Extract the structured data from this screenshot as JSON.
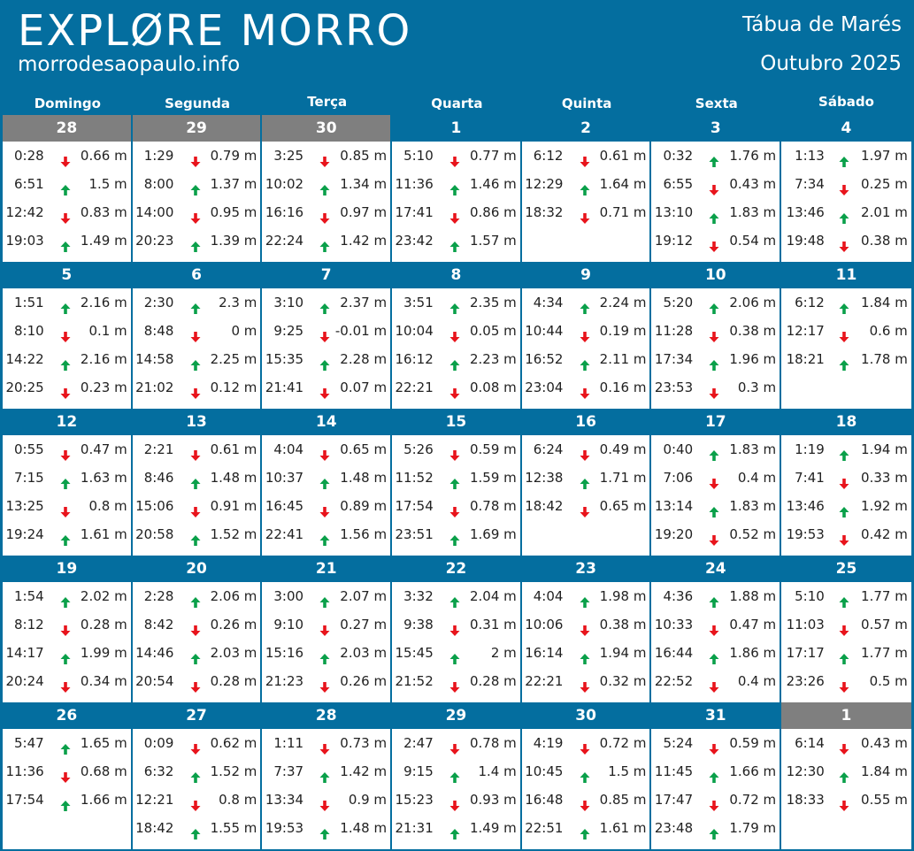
{
  "header": {
    "brand_title": "EXPLØRE MORRO",
    "brand_url": "morrodesaopaulo.info",
    "doc_title": "Tábua de Marés",
    "doc_month": "Outubro 2025"
  },
  "colors": {
    "brand_blue": "#046e9f",
    "other_month_gray": "#7f7f7f",
    "rising_green": "#0aa04a",
    "falling_red": "#e8141c"
  },
  "icons": {
    "rising": "arrow-up-icon",
    "falling": "arrow-down-icon"
  },
  "weekdays": [
    "Domingo",
    "Segunda",
    "Terça",
    "Quarta",
    "Quinta",
    "Sexta",
    "Sábado"
  ],
  "weeks": [
    [
      {
        "day": "28",
        "other_month": true,
        "tides": [
          {
            "time": "0:28",
            "dir": "down",
            "height": "0.66 m"
          },
          {
            "time": "6:51",
            "dir": "up",
            "height": "1.5 m"
          },
          {
            "time": "12:42",
            "dir": "down",
            "height": "0.83 m"
          },
          {
            "time": "19:03",
            "dir": "up",
            "height": "1.49 m"
          }
        ]
      },
      {
        "day": "29",
        "other_month": true,
        "tides": [
          {
            "time": "1:29",
            "dir": "down",
            "height": "0.79 m"
          },
          {
            "time": "8:00",
            "dir": "up",
            "height": "1.37 m"
          },
          {
            "time": "14:00",
            "dir": "down",
            "height": "0.95 m"
          },
          {
            "time": "20:23",
            "dir": "up",
            "height": "1.39 m"
          }
        ]
      },
      {
        "day": "30",
        "other_month": true,
        "tides": [
          {
            "time": "3:25",
            "dir": "down",
            "height": "0.85 m"
          },
          {
            "time": "10:02",
            "dir": "up",
            "height": "1.34 m"
          },
          {
            "time": "16:16",
            "dir": "down",
            "height": "0.97 m"
          },
          {
            "time": "22:24",
            "dir": "up",
            "height": "1.42 m"
          }
        ]
      },
      {
        "day": "1",
        "other_month": false,
        "tides": [
          {
            "time": "5:10",
            "dir": "down",
            "height": "0.77 m"
          },
          {
            "time": "11:36",
            "dir": "up",
            "height": "1.46 m"
          },
          {
            "time": "17:41",
            "dir": "down",
            "height": "0.86 m"
          },
          {
            "time": "23:42",
            "dir": "up",
            "height": "1.57 m"
          }
        ]
      },
      {
        "day": "2",
        "other_month": false,
        "tides": [
          {
            "time": "6:12",
            "dir": "down",
            "height": "0.61 m"
          },
          {
            "time": "12:29",
            "dir": "up",
            "height": "1.64 m"
          },
          {
            "time": "18:32",
            "dir": "down",
            "height": "0.71 m"
          }
        ]
      },
      {
        "day": "3",
        "other_month": false,
        "tides": [
          {
            "time": "0:32",
            "dir": "up",
            "height": "1.76 m"
          },
          {
            "time": "6:55",
            "dir": "down",
            "height": "0.43 m"
          },
          {
            "time": "13:10",
            "dir": "up",
            "height": "1.83 m"
          },
          {
            "time": "19:12",
            "dir": "down",
            "height": "0.54 m"
          }
        ]
      },
      {
        "day": "4",
        "other_month": false,
        "tides": [
          {
            "time": "1:13",
            "dir": "up",
            "height": "1.97 m"
          },
          {
            "time": "7:34",
            "dir": "down",
            "height": "0.25 m"
          },
          {
            "time": "13:46",
            "dir": "up",
            "height": "2.01 m"
          },
          {
            "time": "19:48",
            "dir": "down",
            "height": "0.38 m"
          }
        ]
      }
    ],
    [
      {
        "day": "5",
        "other_month": false,
        "tides": [
          {
            "time": "1:51",
            "dir": "up",
            "height": "2.16 m"
          },
          {
            "time": "8:10",
            "dir": "down",
            "height": "0.1 m"
          },
          {
            "time": "14:22",
            "dir": "up",
            "height": "2.16 m"
          },
          {
            "time": "20:25",
            "dir": "down",
            "height": "0.23 m"
          }
        ]
      },
      {
        "day": "6",
        "other_month": false,
        "tides": [
          {
            "time": "2:30",
            "dir": "up",
            "height": "2.3 m"
          },
          {
            "time": "8:48",
            "dir": "down",
            "height": "0 m"
          },
          {
            "time": "14:58",
            "dir": "up",
            "height": "2.25 m"
          },
          {
            "time": "21:02",
            "dir": "down",
            "height": "0.12 m"
          }
        ]
      },
      {
        "day": "7",
        "other_month": false,
        "tides": [
          {
            "time": "3:10",
            "dir": "up",
            "height": "2.37 m"
          },
          {
            "time": "9:25",
            "dir": "down",
            "height": "-0.01 m"
          },
          {
            "time": "15:35",
            "dir": "up",
            "height": "2.28 m"
          },
          {
            "time": "21:41",
            "dir": "down",
            "height": "0.07 m"
          }
        ]
      },
      {
        "day": "8",
        "other_month": false,
        "tides": [
          {
            "time": "3:51",
            "dir": "up",
            "height": "2.35 m"
          },
          {
            "time": "10:04",
            "dir": "down",
            "height": "0.05 m"
          },
          {
            "time": "16:12",
            "dir": "up",
            "height": "2.23 m"
          },
          {
            "time": "22:21",
            "dir": "down",
            "height": "0.08 m"
          }
        ]
      },
      {
        "day": "9",
        "other_month": false,
        "tides": [
          {
            "time": "4:34",
            "dir": "up",
            "height": "2.24 m"
          },
          {
            "time": "10:44",
            "dir": "down",
            "height": "0.19 m"
          },
          {
            "time": "16:52",
            "dir": "up",
            "height": "2.11 m"
          },
          {
            "time": "23:04",
            "dir": "down",
            "height": "0.16 m"
          }
        ]
      },
      {
        "day": "10",
        "other_month": false,
        "tides": [
          {
            "time": "5:20",
            "dir": "up",
            "height": "2.06 m"
          },
          {
            "time": "11:28",
            "dir": "down",
            "height": "0.38 m"
          },
          {
            "time": "17:34",
            "dir": "up",
            "height": "1.96 m"
          },
          {
            "time": "23:53",
            "dir": "down",
            "height": "0.3 m"
          }
        ]
      },
      {
        "day": "11",
        "other_month": false,
        "tides": [
          {
            "time": "6:12",
            "dir": "up",
            "height": "1.84 m"
          },
          {
            "time": "12:17",
            "dir": "down",
            "height": "0.6 m"
          },
          {
            "time": "18:21",
            "dir": "up",
            "height": "1.78 m"
          }
        ]
      }
    ],
    [
      {
        "day": "12",
        "other_month": false,
        "tides": [
          {
            "time": "0:55",
            "dir": "down",
            "height": "0.47 m"
          },
          {
            "time": "7:15",
            "dir": "up",
            "height": "1.63 m"
          },
          {
            "time": "13:25",
            "dir": "down",
            "height": "0.8 m"
          },
          {
            "time": "19:24",
            "dir": "up",
            "height": "1.61 m"
          }
        ]
      },
      {
        "day": "13",
        "other_month": false,
        "tides": [
          {
            "time": "2:21",
            "dir": "down",
            "height": "0.61 m"
          },
          {
            "time": "8:46",
            "dir": "up",
            "height": "1.48 m"
          },
          {
            "time": "15:06",
            "dir": "down",
            "height": "0.91 m"
          },
          {
            "time": "20:58",
            "dir": "up",
            "height": "1.52 m"
          }
        ]
      },
      {
        "day": "14",
        "other_month": false,
        "tides": [
          {
            "time": "4:04",
            "dir": "down",
            "height": "0.65 m"
          },
          {
            "time": "10:37",
            "dir": "up",
            "height": "1.48 m"
          },
          {
            "time": "16:45",
            "dir": "down",
            "height": "0.89 m"
          },
          {
            "time": "22:41",
            "dir": "up",
            "height": "1.56 m"
          }
        ]
      },
      {
        "day": "15",
        "other_month": false,
        "tides": [
          {
            "time": "5:26",
            "dir": "down",
            "height": "0.59 m"
          },
          {
            "time": "11:52",
            "dir": "up",
            "height": "1.59 m"
          },
          {
            "time": "17:54",
            "dir": "down",
            "height": "0.78 m"
          },
          {
            "time": "23:51",
            "dir": "up",
            "height": "1.69 m"
          }
        ]
      },
      {
        "day": "16",
        "other_month": false,
        "tides": [
          {
            "time": "6:24",
            "dir": "down",
            "height": "0.49 m"
          },
          {
            "time": "12:38",
            "dir": "up",
            "height": "1.71 m"
          },
          {
            "time": "18:42",
            "dir": "down",
            "height": "0.65 m"
          }
        ]
      },
      {
        "day": "17",
        "other_month": false,
        "tides": [
          {
            "time": "0:40",
            "dir": "up",
            "height": "1.83 m"
          },
          {
            "time": "7:06",
            "dir": "down",
            "height": "0.4 m"
          },
          {
            "time": "13:14",
            "dir": "up",
            "height": "1.83 m"
          },
          {
            "time": "19:20",
            "dir": "down",
            "height": "0.52 m"
          }
        ]
      },
      {
        "day": "18",
        "other_month": false,
        "tides": [
          {
            "time": "1:19",
            "dir": "up",
            "height": "1.94 m"
          },
          {
            "time": "7:41",
            "dir": "down",
            "height": "0.33 m"
          },
          {
            "time": "13:46",
            "dir": "up",
            "height": "1.92 m"
          },
          {
            "time": "19:53",
            "dir": "down",
            "height": "0.42 m"
          }
        ]
      }
    ],
    [
      {
        "day": "19",
        "other_month": false,
        "tides": [
          {
            "time": "1:54",
            "dir": "up",
            "height": "2.02 m"
          },
          {
            "time": "8:12",
            "dir": "down",
            "height": "0.28 m"
          },
          {
            "time": "14:17",
            "dir": "up",
            "height": "1.99 m"
          },
          {
            "time": "20:24",
            "dir": "down",
            "height": "0.34 m"
          }
        ]
      },
      {
        "day": "20",
        "other_month": false,
        "tides": [
          {
            "time": "2:28",
            "dir": "up",
            "height": "2.06 m"
          },
          {
            "time": "8:42",
            "dir": "down",
            "height": "0.26 m"
          },
          {
            "time": "14:46",
            "dir": "up",
            "height": "2.03 m"
          },
          {
            "time": "20:54",
            "dir": "down",
            "height": "0.28 m"
          }
        ]
      },
      {
        "day": "21",
        "other_month": false,
        "tides": [
          {
            "time": "3:00",
            "dir": "up",
            "height": "2.07 m"
          },
          {
            "time": "9:10",
            "dir": "down",
            "height": "0.27 m"
          },
          {
            "time": "15:16",
            "dir": "up",
            "height": "2.03 m"
          },
          {
            "time": "21:23",
            "dir": "down",
            "height": "0.26 m"
          }
        ]
      },
      {
        "day": "22",
        "other_month": false,
        "tides": [
          {
            "time": "3:32",
            "dir": "up",
            "height": "2.04 m"
          },
          {
            "time": "9:38",
            "dir": "down",
            "height": "0.31 m"
          },
          {
            "time": "15:45",
            "dir": "up",
            "height": "2 m"
          },
          {
            "time": "21:52",
            "dir": "down",
            "height": "0.28 m"
          }
        ]
      },
      {
        "day": "23",
        "other_month": false,
        "tides": [
          {
            "time": "4:04",
            "dir": "up",
            "height": "1.98 m"
          },
          {
            "time": "10:06",
            "dir": "down",
            "height": "0.38 m"
          },
          {
            "time": "16:14",
            "dir": "up",
            "height": "1.94 m"
          },
          {
            "time": "22:21",
            "dir": "down",
            "height": "0.32 m"
          }
        ]
      },
      {
        "day": "24",
        "other_month": false,
        "tides": [
          {
            "time": "4:36",
            "dir": "up",
            "height": "1.88 m"
          },
          {
            "time": "10:33",
            "dir": "down",
            "height": "0.47 m"
          },
          {
            "time": "16:44",
            "dir": "up",
            "height": "1.86 m"
          },
          {
            "time": "22:52",
            "dir": "down",
            "height": "0.4 m"
          }
        ]
      },
      {
        "day": "25",
        "other_month": false,
        "tides": [
          {
            "time": "5:10",
            "dir": "up",
            "height": "1.77 m"
          },
          {
            "time": "11:03",
            "dir": "down",
            "height": "0.57 m"
          },
          {
            "time": "17:17",
            "dir": "up",
            "height": "1.77 m"
          },
          {
            "time": "23:26",
            "dir": "down",
            "height": "0.5 m"
          }
        ]
      }
    ],
    [
      {
        "day": "26",
        "other_month": false,
        "tides": [
          {
            "time": "5:47",
            "dir": "up",
            "height": "1.65 m"
          },
          {
            "time": "11:36",
            "dir": "down",
            "height": "0.68 m"
          },
          {
            "time": "17:54",
            "dir": "up",
            "height": "1.66 m"
          }
        ]
      },
      {
        "day": "27",
        "other_month": false,
        "tides": [
          {
            "time": "0:09",
            "dir": "down",
            "height": "0.62 m"
          },
          {
            "time": "6:32",
            "dir": "up",
            "height": "1.52 m"
          },
          {
            "time": "12:21",
            "dir": "down",
            "height": "0.8 m"
          },
          {
            "time": "18:42",
            "dir": "up",
            "height": "1.55 m"
          }
        ]
      },
      {
        "day": "28",
        "other_month": false,
        "tides": [
          {
            "time": "1:11",
            "dir": "down",
            "height": "0.73 m"
          },
          {
            "time": "7:37",
            "dir": "up",
            "height": "1.42 m"
          },
          {
            "time": "13:34",
            "dir": "down",
            "height": "0.9 m"
          },
          {
            "time": "19:53",
            "dir": "up",
            "height": "1.48 m"
          }
        ]
      },
      {
        "day": "29",
        "other_month": false,
        "tides": [
          {
            "time": "2:47",
            "dir": "down",
            "height": "0.78 m"
          },
          {
            "time": "9:15",
            "dir": "up",
            "height": "1.4 m"
          },
          {
            "time": "15:23",
            "dir": "down",
            "height": "0.93 m"
          },
          {
            "time": "21:31",
            "dir": "up",
            "height": "1.49 m"
          }
        ]
      },
      {
        "day": "30",
        "other_month": false,
        "tides": [
          {
            "time": "4:19",
            "dir": "down",
            "height": "0.72 m"
          },
          {
            "time": "10:45",
            "dir": "up",
            "height": "1.5 m"
          },
          {
            "time": "16:48",
            "dir": "down",
            "height": "0.85 m"
          },
          {
            "time": "22:51",
            "dir": "up",
            "height": "1.61 m"
          }
        ]
      },
      {
        "day": "31",
        "other_month": false,
        "tides": [
          {
            "time": "5:24",
            "dir": "down",
            "height": "0.59 m"
          },
          {
            "time": "11:45",
            "dir": "up",
            "height": "1.66 m"
          },
          {
            "time": "17:47",
            "dir": "down",
            "height": "0.72 m"
          },
          {
            "time": "23:48",
            "dir": "up",
            "height": "1.79 m"
          }
        ]
      },
      {
        "day": "1",
        "other_month": true,
        "tides": [
          {
            "time": "6:14",
            "dir": "down",
            "height": "0.43 m"
          },
          {
            "time": "12:30",
            "dir": "up",
            "height": "1.84 m"
          },
          {
            "time": "18:33",
            "dir": "down",
            "height": "0.55 m"
          }
        ]
      }
    ]
  ]
}
